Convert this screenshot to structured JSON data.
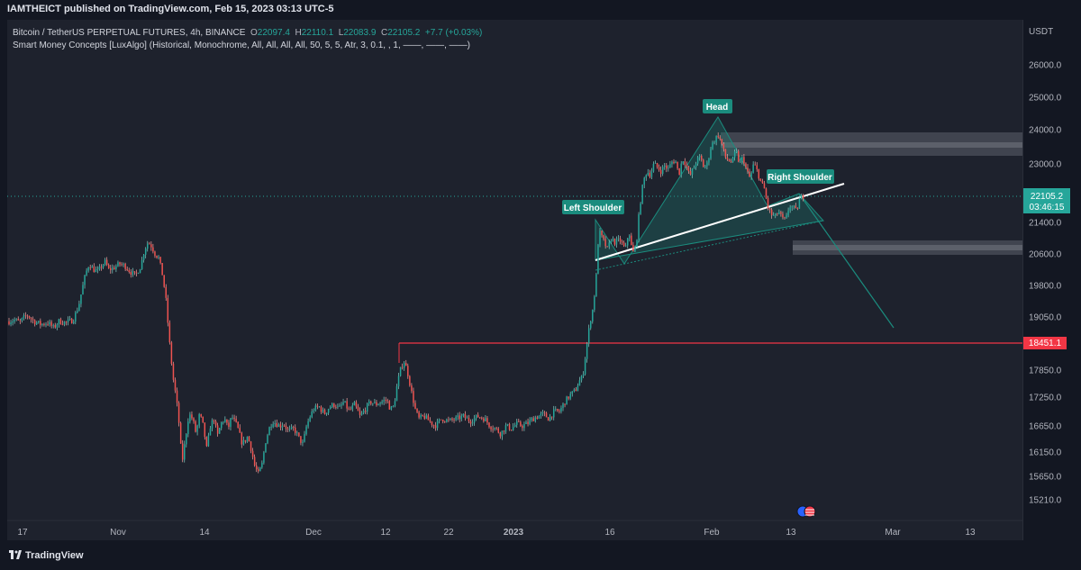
{
  "header": {
    "published": "IAMTHEICT published on TradingView.com, Feb 15, 2023 03:13 UTC-5"
  },
  "legend": {
    "symbol": "Bitcoin / TetherUS PERPETUAL FUTURES, 4h, BINANCE",
    "o_label": "O",
    "o_value": "22097.4",
    "h_label": "H",
    "h_value": "22110.1",
    "l_label": "L",
    "l_value": "22083.9",
    "c_label": "C",
    "c_value": "22105.2",
    "change": "+7.7 (+0.03%)",
    "indicator": "Smart Money Concepts [LuxAlgo] (Historical, Monochrome, All, All, All, All, 50, 5, 5, Atr, 3, 0.1, , 1, ——, ——, ——)"
  },
  "footer": {
    "brand": "TradingView"
  },
  "colors": {
    "bull": "#26a69a",
    "bear": "#ef5350",
    "background": "#1e222d",
    "pattern": "#1b8c7e",
    "resistance": "#f23645",
    "neckline": "#ffffff"
  },
  "chart_data": {
    "type": "candlestick",
    "symbol": "BTCUSDT Perpetual",
    "timeframe": "4h",
    "currency": "USDT",
    "y_ticks": [
      26000,
      25000,
      24000,
      23000,
      22100,
      21400,
      20600,
      19800,
      19050,
      17850,
      17250,
      16650,
      16150,
      15650,
      15210
    ],
    "y_tick_labels": [
      "26000.0",
      "25000.0",
      "24000.0",
      "23000.0",
      "",
      "21400.0",
      "20600.0",
      "19800.0",
      "19050.0",
      "17850.0",
      "17250.0",
      "16650.0",
      "16150.0",
      "15650.0",
      "15210.0"
    ],
    "x_labels": [
      "17",
      "Nov",
      "14",
      "Dec",
      "12",
      "22",
      "2023",
      "16",
      "Feb",
      "13",
      "Mar",
      "13"
    ],
    "last_price": {
      "value": 22105.2,
      "label": "22105.2",
      "countdown": "03:46:15"
    },
    "resistance_level": {
      "value": 18451.1,
      "label": "18451.1"
    },
    "pattern": {
      "name": "Head and Shoulders",
      "labels": {
        "left_shoulder": "Left Shoulder",
        "head": "Head",
        "right_shoulder": "Right Shoulder"
      }
    },
    "price_path": [
      [
        0,
        18950
      ],
      [
        6,
        18980
      ],
      [
        12,
        18930
      ],
      [
        20,
        19100
      ],
      [
        28,
        18950
      ],
      [
        36,
        18880
      ],
      [
        44,
        18920
      ],
      [
        50,
        18800
      ],
      [
        56,
        18950
      ],
      [
        64,
        18920
      ],
      [
        72,
        18980
      ],
      [
        78,
        19300
      ],
      [
        82,
        19700
      ],
      [
        86,
        20100
      ],
      [
        90,
        20350
      ],
      [
        95,
        20200
      ],
      [
        100,
        20150
      ],
      [
        104,
        20300
      ],
      [
        108,
        20400
      ],
      [
        112,
        20200
      ],
      [
        118,
        20250
      ],
      [
        124,
        20350
      ],
      [
        130,
        20300
      ],
      [
        136,
        20150
      ],
      [
        142,
        20050
      ],
      [
        148,
        20300
      ],
      [
        152,
        20700
      ],
      [
        156,
        20900
      ],
      [
        160,
        20800
      ],
      [
        164,
        20600
      ],
      [
        168,
        20500
      ],
      [
        172,
        20100
      ],
      [
        176,
        19500
      ],
      [
        180,
        18500
      ],
      [
        184,
        17700
      ],
      [
        188,
        17200
      ],
      [
        192,
        16500
      ],
      [
        194,
        15900
      ],
      [
        198,
        16400
      ],
      [
        202,
        16900
      ],
      [
        206,
        16800
      ],
      [
        210,
        16500
      ],
      [
        214,
        16900
      ],
      [
        218,
        16650
      ],
      [
        222,
        16200
      ],
      [
        226,
        16650
      ],
      [
        230,
        16800
      ],
      [
        234,
        16450
      ],
      [
        238,
        16700
      ],
      [
        242,
        16800
      ],
      [
        246,
        16600
      ],
      [
        250,
        16850
      ],
      [
        256,
        16650
      ],
      [
        262,
        16300
      ],
      [
        268,
        16450
      ],
      [
        272,
        16200
      ],
      [
        276,
        15850
      ],
      [
        280,
        15700
      ],
      [
        284,
        15900
      ],
      [
        288,
        16350
      ],
      [
        292,
        16600
      ],
      [
        296,
        16750
      ],
      [
        300,
        16700
      ],
      [
        304,
        16650
      ],
      [
        308,
        16700
      ],
      [
        314,
        16550
      ],
      [
        320,
        16600
      ],
      [
        326,
        16400
      ],
      [
        330,
        16300
      ],
      [
        334,
        16650
      ],
      [
        338,
        16850
      ],
      [
        342,
        17000
      ],
      [
        348,
        17050
      ],
      [
        354,
        16900
      ],
      [
        360,
        17050
      ],
      [
        366,
        17100
      ],
      [
        370,
        17000
      ],
      [
        376,
        17150
      ],
      [
        382,
        16950
      ],
      [
        388,
        17100
      ],
      [
        394,
        16850
      ],
      [
        400,
        17000
      ],
      [
        406,
        17150
      ],
      [
        412,
        17100
      ],
      [
        418,
        17150
      ],
      [
        424,
        17200
      ],
      [
        428,
        17000
      ],
      [
        432,
        17050
      ],
      [
        436,
        17550
      ],
      [
        440,
        17900
      ],
      [
        444,
        18050
      ],
      [
        448,
        17750
      ],
      [
        452,
        17350
      ],
      [
        456,
        17000
      ],
      [
        460,
        16800
      ],
      [
        466,
        16850
      ],
      [
        472,
        16750
      ],
      [
        478,
        16650
      ],
      [
        486,
        16800
      ],
      [
        494,
        16750
      ],
      [
        502,
        16800
      ],
      [
        510,
        16850
      ],
      [
        518,
        16750
      ],
      [
        526,
        16850
      ],
      [
        534,
        16800
      ],
      [
        540,
        16650
      ],
      [
        546,
        16600
      ],
      [
        552,
        16500
      ],
      [
        558,
        16650
      ],
      [
        564,
        16600
      ],
      [
        570,
        16700
      ],
      [
        576,
        16650
      ],
      [
        582,
        16700
      ],
      [
        588,
        16800
      ],
      [
        594,
        16850
      ],
      [
        600,
        16900
      ],
      [
        606,
        16800
      ],
      [
        612,
        16950
      ],
      [
        618,
        16950
      ],
      [
        624,
        17150
      ],
      [
        630,
        17300
      ],
      [
        636,
        17400
      ],
      [
        640,
        17600
      ],
      [
        644,
        17700
      ],
      [
        648,
        18300
      ],
      [
        652,
        18900
      ],
      [
        656,
        19300
      ],
      [
        660,
        20200
      ],
      [
        662,
        21200
      ],
      [
        664,
        21100
      ],
      [
        668,
        20900
      ],
      [
        672,
        20700
      ],
      [
        676,
        21000
      ],
      [
        680,
        20900
      ],
      [
        686,
        20950
      ],
      [
        692,
        20700
      ],
      [
        696,
        21200
      ],
      [
        700,
        20600
      ],
      [
        704,
        20800
      ],
      [
        708,
        21800
      ],
      [
        712,
        22500
      ],
      [
        716,
        22800
      ],
      [
        720,
        22700
      ],
      [
        724,
        23000
      ],
      [
        728,
        22900
      ],
      [
        732,
        22800
      ],
      [
        736,
        22950
      ],
      [
        740,
        22850
      ],
      [
        744,
        23050
      ],
      [
        748,
        23100
      ],
      [
        752,
        22700
      ],
      [
        756,
        23150
      ],
      [
        760,
        23000
      ],
      [
        764,
        22650
      ],
      [
        768,
        22850
      ],
      [
        772,
        23100
      ],
      [
        776,
        23200
      ],
      [
        780,
        22900
      ],
      [
        784,
        23000
      ],
      [
        788,
        23500
      ],
      [
        792,
        23700
      ],
      [
        796,
        23850
      ],
      [
        800,
        23600
      ],
      [
        804,
        23200
      ],
      [
        808,
        23100
      ],
      [
        812,
        23050
      ],
      [
        816,
        23400
      ],
      [
        820,
        23000
      ],
      [
        824,
        23200
      ],
      [
        828,
        22800
      ],
      [
        832,
        22600
      ],
      [
        836,
        23000
      ],
      [
        840,
        22800
      ],
      [
        844,
        22500
      ],
      [
        848,
        22300
      ],
      [
        852,
        21800
      ],
      [
        856,
        21600
      ],
      [
        860,
        21550
      ],
      [
        864,
        21700
      ],
      [
        868,
        21500
      ],
      [
        872,
        21450
      ],
      [
        876,
        21850
      ],
      [
        880,
        21800
      ],
      [
        884,
        21700
      ],
      [
        888,
        22050
      ],
      [
        892,
        22105
      ]
    ]
  }
}
